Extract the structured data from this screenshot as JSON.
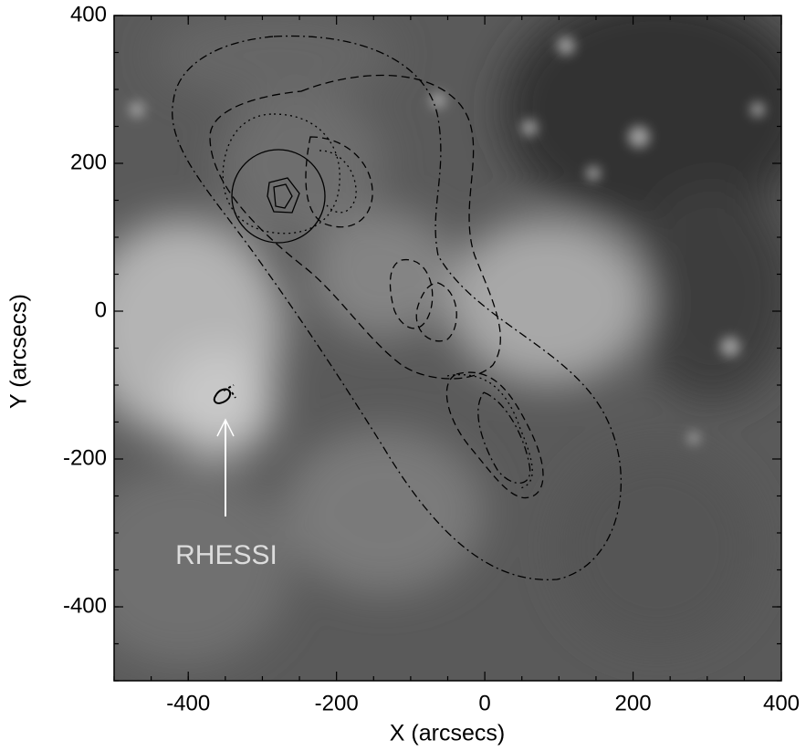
{
  "chart_data": {
    "type": "image",
    "x_label": "X (arcsecs)",
    "y_label": "Y (arcsecs)",
    "xlim": [
      -500,
      400
    ],
    "ylim": [
      -500,
      400
    ],
    "xticks": [
      -400,
      -200,
      0,
      200,
      400
    ],
    "yticks": [
      -400,
      -200,
      0,
      200,
      400
    ],
    "annotation": "RHESSI"
  }
}
